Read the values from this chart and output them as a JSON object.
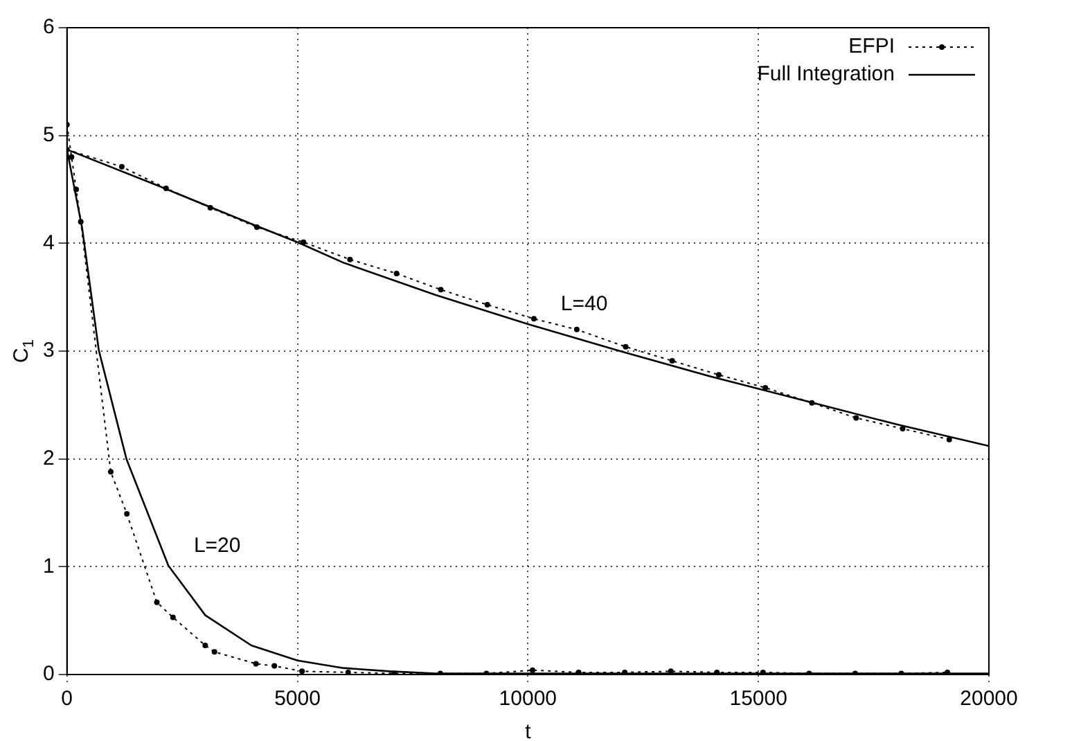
{
  "chart_data": {
    "type": "line",
    "xlabel": "t",
    "ylabel": "C$_{1}$",
    "xlim": [
      0,
      20000
    ],
    "xticks": [
      0,
      5000,
      10000,
      15000,
      20000
    ],
    "ylim": [
      0,
      6
    ],
    "yticks": [
      0,
      1,
      2,
      3,
      4,
      5,
      6
    ],
    "grid": true,
    "legend": "top right",
    "annotations": [
      "L=40",
      "L=20"
    ],
    "series": [
      {
        "name": "EFPI",
        "color": "#000000",
        "marker": "circle",
        "line_style": "dotted",
        "x": [
          0,
          1190,
          2150,
          3110,
          4120,
          5130,
          6140,
          7150,
          8110,
          9120,
          10130,
          11060,
          12120,
          13130,
          14140,
          15150,
          16160,
          17120,
          18130,
          19140
        ],
        "values": [
          4.87,
          4.71,
          4.51,
          4.33,
          4.15,
          4.01,
          3.85,
          3.72,
          3.57,
          3.43,
          3.3,
          3.2,
          3.04,
          2.91,
          2.78,
          2.66,
          2.52,
          2.38,
          2.28,
          2.18
        ]
      },
      {
        "color": "#000000",
        "marker": "circle",
        "line_style": "dotted",
        "x": [
          0,
          100,
          200,
          300,
          950,
          1300,
          1950,
          2300,
          3000,
          3200,
          4100,
          4500,
          5100,
          6100,
          7100,
          8100,
          9100,
          10100,
          11100,
          12100,
          13100,
          14100,
          15100,
          16100,
          17100,
          18100,
          19100
        ],
        "values": [
          5.1,
          4.8,
          4.5,
          4.2,
          1.88,
          1.49,
          0.67,
          0.53,
          0.27,
          0.21,
          0.1,
          0.08,
          0.03,
          0.02,
          0.01,
          0.01,
          0.01,
          0.04,
          0.02,
          0.02,
          0.03,
          0.02,
          0.02,
          0.01,
          0.01,
          0.01,
          0.02
        ]
      },
      {
        "name": "Full Integration",
        "color": "#000000",
        "marker": "none",
        "line_style": "solid",
        "x": [
          0,
          2000,
          4000,
          5000,
          6000,
          8000,
          10000,
          12000,
          14000,
          16000,
          18000,
          20000
        ],
        "values": [
          4.87,
          4.53,
          4.18,
          4.01,
          3.82,
          3.52,
          3.25,
          3.0,
          2.76,
          2.54,
          2.32,
          2.12
        ]
      },
      {
        "color": "#000000",
        "marker": "none",
        "line_style": "solid",
        "x": [
          0,
          330,
          690,
          1290,
          2200,
          3000,
          4000,
          5000,
          6000,
          7000,
          8000,
          10000,
          15000,
          20000
        ],
        "values": [
          4.87,
          4.14,
          3.01,
          2.0,
          1.01,
          0.55,
          0.27,
          0.13,
          0.06,
          0.03,
          0.01,
          0.01,
          0.01,
          0.01
        ]
      }
    ]
  }
}
